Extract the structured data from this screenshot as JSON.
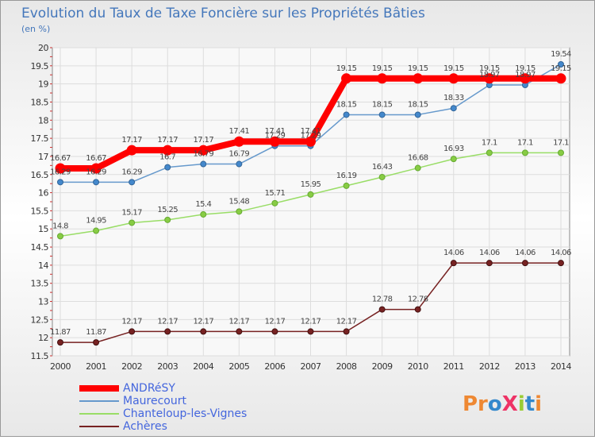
{
  "chart_data": {
    "type": "line",
    "title": "Evolution du Taux de Taxe Foncière sur les Propriétés Bâties",
    "subtitle": "(en %)",
    "x": [
      "2000",
      "2001",
      "2002",
      "2003",
      "2004",
      "2005",
      "2006",
      "2007",
      "2008",
      "2009",
      "2010",
      "2011",
      "2012",
      "2013",
      "2014"
    ],
    "y_ticks": [
      "11.5",
      "12",
      "12.5",
      "13",
      "13.5",
      "14",
      "14.5",
      "15",
      "15.5",
      "16",
      "16.5",
      "17",
      "17.5",
      "18",
      "18.5",
      "19",
      "19.5",
      "20"
    ],
    "ylim": [
      11.5,
      20
    ],
    "grid": true,
    "legend_position": "bottom-left",
    "series": [
      {
        "name": "ANDRéSY",
        "color": "#ff0000",
        "values": [
          16.67,
          16.67,
          17.17,
          17.17,
          17.17,
          17.41,
          17.41,
          17.41,
          19.15,
          19.15,
          19.15,
          19.15,
          19.15,
          19.15,
          19.15
        ],
        "labels": [
          "16.67",
          "16.67",
          "17.17",
          "17.17",
          "17.17",
          "17.41",
          "17.41",
          "17.41",
          "19.15",
          "19.15",
          "19.15",
          "19.15",
          "19.15",
          "19.15",
          "19.15"
        ]
      },
      {
        "name": "Maurecourt",
        "color": "#6699cc",
        "values": [
          16.29,
          16.29,
          16.29,
          16.7,
          16.79,
          16.79,
          17.29,
          17.29,
          18.15,
          18.15,
          18.15,
          18.33,
          18.97,
          18.97,
          19.54
        ],
        "labels": [
          "16.29",
          "16.29",
          "16.29",
          "16.7",
          "16.79",
          "16.79",
          "17.29",
          "17.29",
          "18.15",
          "18.15",
          "18.15",
          "18.33",
          "18.97",
          "18.97",
          "19.54"
        ]
      },
      {
        "name": "Chanteloup-les-Vignes",
        "color": "#99dd66",
        "values": [
          14.8,
          14.95,
          15.17,
          15.25,
          15.4,
          15.48,
          15.71,
          15.95,
          16.19,
          16.43,
          16.68,
          16.93,
          17.1,
          17.1,
          17.1
        ],
        "labels": [
          "14.8",
          "14.95",
          "15.17",
          "15.25",
          "15.4",
          "15.48",
          "15.71",
          "15.95",
          "16.19",
          "16.43",
          "16.68",
          "16.93",
          "17.1",
          "17.1",
          "17.1"
        ]
      },
      {
        "name": "Achères",
        "color": "#772222",
        "values": [
          11.87,
          11.87,
          12.17,
          12.17,
          12.17,
          12.17,
          12.17,
          12.17,
          12.17,
          12.78,
          12.78,
          14.06,
          14.06,
          14.06,
          14.06
        ],
        "labels": [
          "11.87",
          "11.87",
          "12.17",
          "12.17",
          "12.17",
          "12.17",
          "12.17",
          "12.17",
          "12.17",
          "12.78",
          "12.78",
          "14.06",
          "14.06",
          "14.06",
          "14.06"
        ]
      }
    ]
  },
  "brand": {
    "name": "ProXiti"
  },
  "colors": {
    "background": "#f2f2f2",
    "plot_background": "#ffffff",
    "title": "#4477bb",
    "grid": "#dddddd"
  }
}
